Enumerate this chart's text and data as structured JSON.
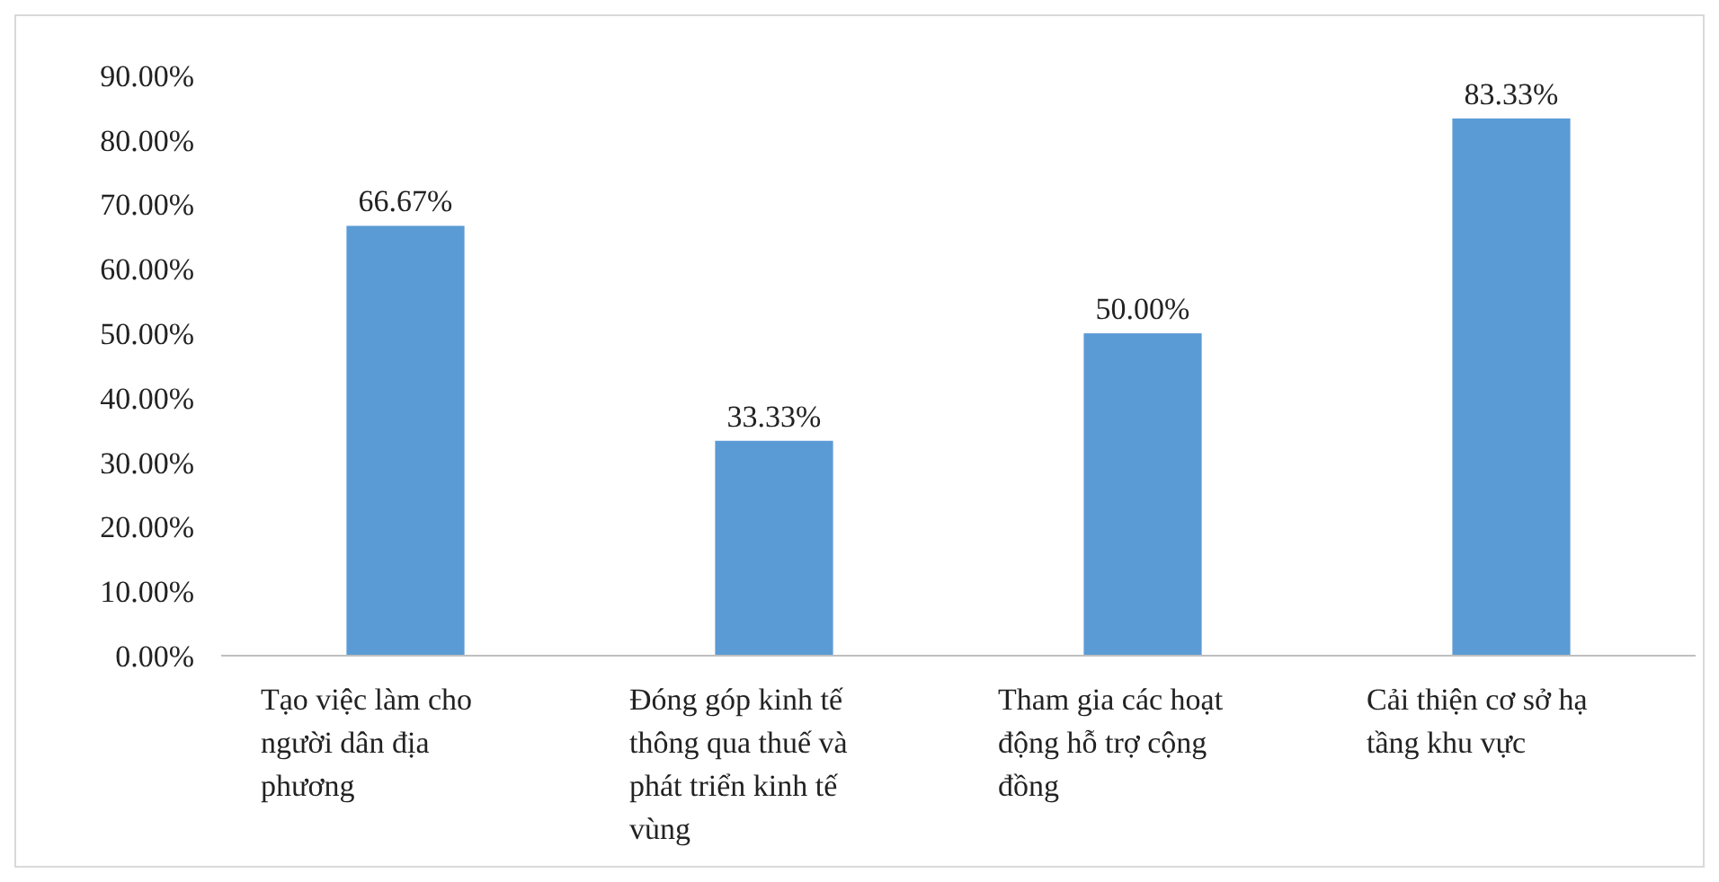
{
  "chart_data": {
    "type": "bar",
    "categories": [
      "Tạo việc làm cho người dân địa phương",
      "Đóng góp kinh tế thông qua thuế và phát triển kinh tế vùng",
      "Tham gia các hoạt động hỗ trợ cộng đồng",
      "Cải thiện cơ sở hạ tầng khu vực"
    ],
    "values": [
      66.67,
      33.33,
      50,
      83.33
    ],
    "value_labels": [
      "66.67%",
      "33.33%",
      "50.00%",
      "83.33%"
    ],
    "color": "#5b9bd5",
    "ylim": [
      0,
      90
    ],
    "yticks": [
      {
        "value": 0,
        "label": "0.00%"
      },
      {
        "value": 10,
        "label": "10.00%"
      },
      {
        "value": 20,
        "label": "20.00%"
      },
      {
        "value": 30,
        "label": "30.00%"
      },
      {
        "value": 40,
        "label": "40.00%"
      },
      {
        "value": 50,
        "label": "50.00%"
      },
      {
        "value": 60,
        "label": "60.00%"
      },
      {
        "value": 70,
        "label": "70.00%"
      },
      {
        "value": 80,
        "label": "80.00%"
      },
      {
        "value": 90,
        "label": "90.00%"
      }
    ],
    "grid": false
  }
}
